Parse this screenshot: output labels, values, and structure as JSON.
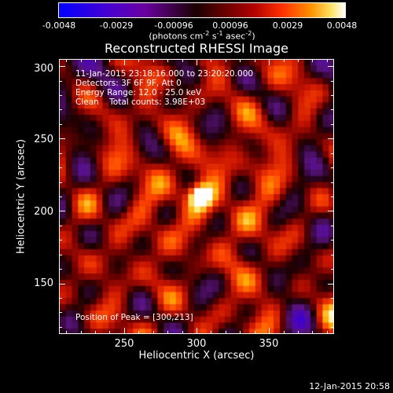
{
  "colorbar": {
    "ticks": [
      "-0.0048",
      "-0.0029",
      "-0.00096",
      "0.00096",
      "0.0029",
      "0.0048"
    ],
    "unit_text": "(photons cm^-2 s^-1 asec^-2)"
  },
  "title": "Reconstructed RHESSI Image",
  "info": {
    "line1": "11-Jan-2015 23:18:16.000 to 23:20:20.000",
    "line2": "Detectors: 3F 6F 9F, Att 0",
    "line3": "Energy Range: 12.0 - 25.0 keV",
    "line4": "Clean    Total counts: 3.98E+03"
  },
  "peak_text": "Position of Peak = [300,213]",
  "axes": {
    "xlabel": "Heliocentric X (arcsec)",
    "ylabel": "Heliocentric Y (arcsec)",
    "xticks": [
      "250",
      "300",
      "350"
    ],
    "yticks": [
      "300",
      "250",
      "200",
      "150"
    ]
  },
  "footer_timestamp": "12-Jan-2015 20:58",
  "chart_data": {
    "type": "heatmap",
    "title": "Reconstructed RHESSI Image",
    "xlabel": "Heliocentric X (arcsec)",
    "ylabel": "Heliocentric Y (arcsec)",
    "xlim": [
      205,
      395
    ],
    "ylim": [
      115,
      305
    ],
    "peak": [
      300,
      213
    ],
    "colorbar_range": [
      -0.0048,
      0.0048
    ],
    "colormap": "blue-red-yellow-white"
  }
}
